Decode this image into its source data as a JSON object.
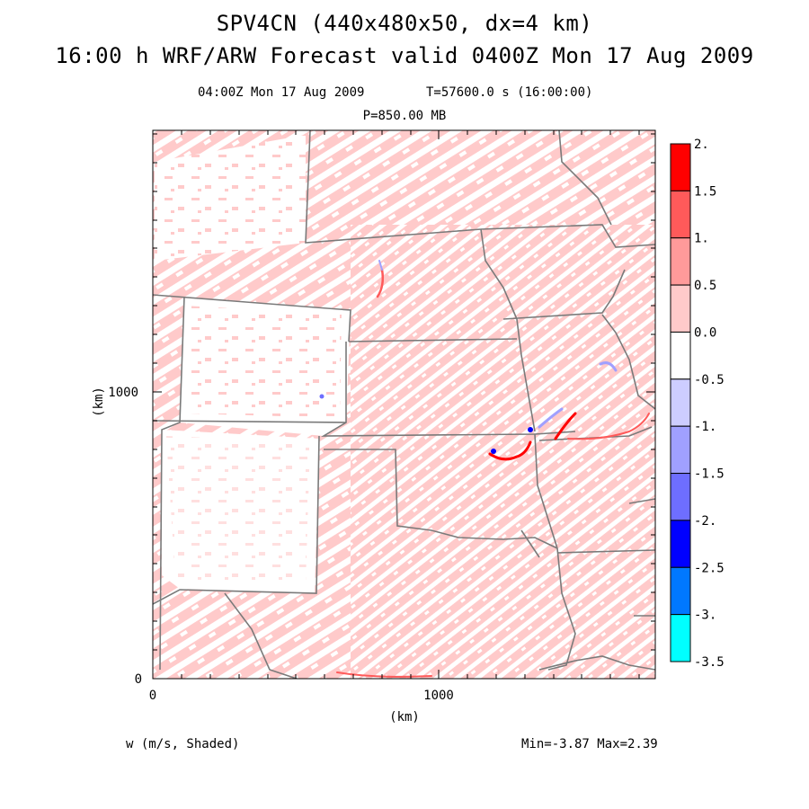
{
  "title": {
    "line1": "SPV4CN (440x480x50, dx=4 km)",
    "line2": "16:00 h WRF/ARW Forecast valid 0400Z Mon 17 Aug 2009"
  },
  "subtitle": {
    "time": "04:00Z Mon 17 Aug 2009",
    "sim": "T=57600.0 s (16:00:00)",
    "level": "P=850.00 MB"
  },
  "axes": {
    "x_unit": "(km)",
    "y_unit": "(km)",
    "x_ticks": [
      {
        "value": 0,
        "label": "0"
      },
      {
        "value": 1000,
        "label": "1000"
      }
    ],
    "y_ticks": [
      {
        "value": 0,
        "label": "0"
      },
      {
        "value": 1000,
        "label": "1000"
      }
    ],
    "x_range_km": [
      0,
      1760
    ],
    "y_range_km": [
      0,
      1920
    ]
  },
  "colorbar": {
    "bounds": [
      "2.",
      "1.5",
      "1.",
      "0.5",
      "0.0",
      "-0.5",
      "-1.",
      "-1.5",
      "-2.",
      "-2.5",
      "-3.",
      "-3.5"
    ],
    "colors": [
      "#ff0000",
      "#ff5a5a",
      "#ff9a9a",
      "#ffcaca",
      "#ffffff",
      "#cdcdff",
      "#a0a0ff",
      "#6e6eff",
      "#0000ff",
      "#0078ff",
      "#00ffff"
    ]
  },
  "footer": {
    "variable": "w (m/s, Shaded)",
    "minmax": "Min=-3.87 Max=2.39"
  },
  "colors": {
    "weak_updraft": "#ffcaca",
    "state_border": "#7a7a7a",
    "strong_updraft": "#ff0000",
    "downdraft": "#0000ff"
  }
}
